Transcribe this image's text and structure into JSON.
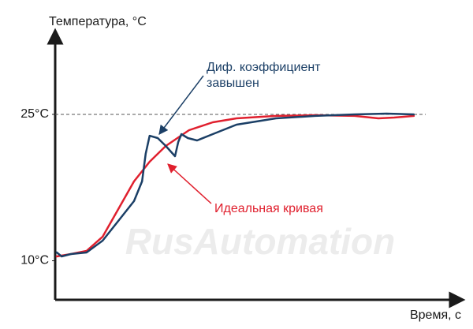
{
  "chart_data": {
    "type": "line",
    "y_label": "Температура, °C",
    "x_label": "Время, с",
    "watermark": "RusAutomation",
    "annotations": [
      "Диф. коэффициент",
      "завышен",
      "Идеальная кривая"
    ],
    "xlim": [
      0,
      100
    ],
    "ylim": [
      6,
      33
    ],
    "yticks": [
      {
        "value": 10,
        "label": "10°C"
      },
      {
        "value": 25,
        "label": "25°C"
      }
    ],
    "reference_line": 25,
    "series": [
      {
        "color": "#e0202e",
        "x": [
          0.4,
          3.9,
          7.8,
          11.8,
          15.7,
          19.6,
          23.5,
          27.5,
          33.3,
          39.2,
          45.1,
          54.9,
          64.7,
          74.5,
          80.4,
          84.3,
          89.2
        ],
        "values": [
          10.45,
          10.69,
          11.01,
          12.47,
          15.3,
          18.13,
          20.15,
          21.76,
          23.38,
          24.19,
          24.59,
          24.84,
          24.92,
          24.84,
          24.59,
          24.67,
          24.84
        ]
      },
      {
        "color": "#1b3f66",
        "x": [
          0.4,
          1.6,
          3.9,
          7.8,
          11.8,
          15.7,
          19.6,
          21.6,
          22.5,
          23.5,
          25.5,
          27.5,
          29.8,
          30.6,
          31.4,
          33.0,
          35.3,
          39.2,
          45.1,
          54.9,
          64.7,
          74.5,
          82.4,
          89.2
        ],
        "values": [
          10.85,
          10.45,
          10.69,
          10.85,
          12.06,
          14.08,
          16.11,
          18.13,
          20.96,
          22.81,
          22.57,
          21.76,
          20.71,
          22.17,
          22.98,
          22.57,
          22.33,
          22.98,
          23.95,
          24.59,
          24.84,
          25.0,
          25.08,
          25.0
        ]
      }
    ]
  }
}
